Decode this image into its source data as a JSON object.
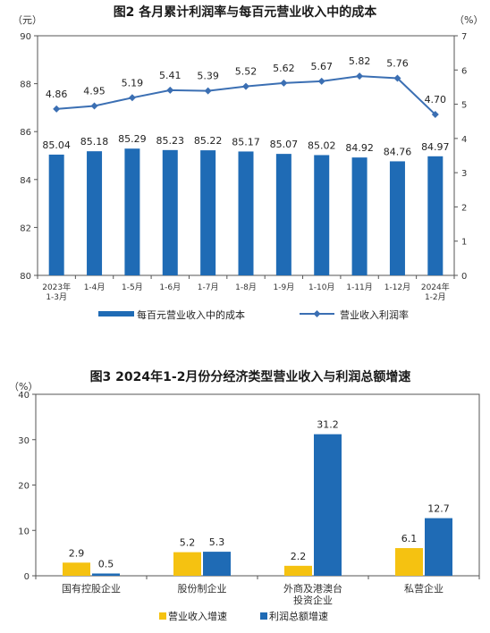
{
  "chart_data": [
    {
      "type": "bar",
      "title": "图2  各月累计利润率与每百元营业收入中的成本",
      "left_unit": "（元）",
      "right_unit": "（%）",
      "categories": [
        [
          "2023年",
          "1-3月"
        ],
        [
          "1-4月"
        ],
        [
          "1-5月"
        ],
        [
          "1-6月"
        ],
        [
          "1-7月"
        ],
        [
          "1-8月"
        ],
        [
          "1-9月"
        ],
        [
          "1-10月"
        ],
        [
          "1-11月"
        ],
        [
          "1-12月"
        ],
        [
          "2024年",
          "1-2月"
        ]
      ],
      "ylim_left": [
        80,
        90
      ],
      "yticks_left": [
        80,
        82,
        84,
        86,
        88,
        90
      ],
      "ylim_right": [
        0,
        7
      ],
      "yticks_right": [
        0,
        1,
        2,
        3,
        4,
        5,
        6,
        7
      ],
      "series": [
        {
          "name": "每百元营业收入中的成本",
          "type": "bar",
          "axis": "left",
          "color": "#1f6bb5",
          "values": [
            85.04,
            85.18,
            85.29,
            85.23,
            85.22,
            85.17,
            85.07,
            85.02,
            84.92,
            84.76,
            84.97
          ],
          "labels": [
            "85.04",
            "85.18",
            "85.29",
            "85.23",
            "85.22",
            "85.17",
            "85.07",
            "85.02",
            "84.92",
            "84.76",
            "84.97"
          ]
        },
        {
          "name": "营业收入利润率",
          "type": "line",
          "axis": "right",
          "color": "#3b6fb3",
          "values": [
            4.86,
            4.95,
            5.19,
            5.41,
            5.39,
            5.52,
            5.62,
            5.67,
            5.82,
            5.76,
            4.7
          ],
          "labels": [
            "4.86",
            "4.95",
            "5.19",
            "5.41",
            "5.39",
            "5.52",
            "5.62",
            "5.67",
            "5.82",
            "5.76",
            "4.70"
          ]
        }
      ],
      "legend_position": "bottom",
      "grid": false
    },
    {
      "type": "bar",
      "title": "图3  2024年1-2月份分经济类型营业收入与利润总额增速",
      "unit": "（%）",
      "categories": [
        [
          "国有控股企业"
        ],
        [
          "股份制企业"
        ],
        [
          "外商及港澳台",
          "投资企业"
        ],
        [
          "私营企业"
        ]
      ],
      "ylim": [
        0,
        40
      ],
      "yticks": [
        0,
        10,
        20,
        30,
        40
      ],
      "series": [
        {
          "name": "营业收入增速",
          "color": "#f5c211",
          "values": [
            2.9,
            5.2,
            2.2,
            6.1
          ],
          "labels": [
            "2.9",
            "5.2",
            "2.2",
            "6.1"
          ]
        },
        {
          "name": "利润总额增速",
          "color": "#1f6bb5",
          "values": [
            0.5,
            5.3,
            31.2,
            12.7
          ],
          "labels": [
            "0.5",
            "5.3",
            "31.2",
            "12.7"
          ]
        }
      ],
      "legend_position": "bottom",
      "grid": false
    }
  ]
}
